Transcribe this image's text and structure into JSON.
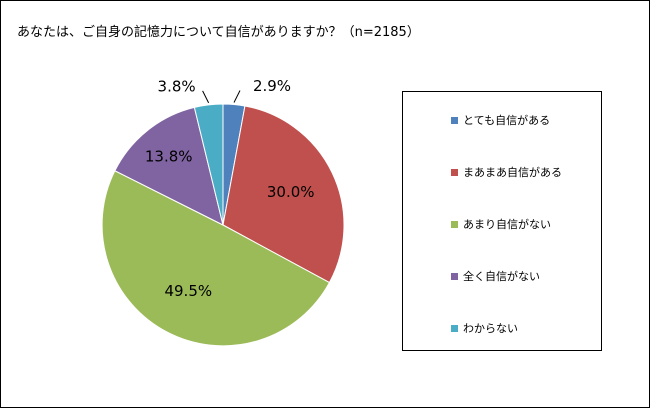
{
  "title": "あなたは、ご自身の記憶力について自信がありますか？（n=2185）",
  "chart_data": {
    "type": "pie",
    "title": "あなたは、ご自身の記憶力について自信がありますか？（n=2185）",
    "categories": [
      "とても自信がある",
      "まあまあ自信がある",
      "あまり自信がない",
      "全く自信がない",
      "わからない"
    ],
    "values": [
      2.9,
      30.0,
      49.5,
      13.8,
      3.8
    ],
    "labels": [
      "2.9%",
      "30.0%",
      "49.5%",
      "13.8%",
      "3.8%"
    ],
    "colors": [
      "#4f81bd",
      "#c0504d",
      "#9bbb59",
      "#8064a2",
      "#4bacc6"
    ],
    "legend_position": "right"
  }
}
